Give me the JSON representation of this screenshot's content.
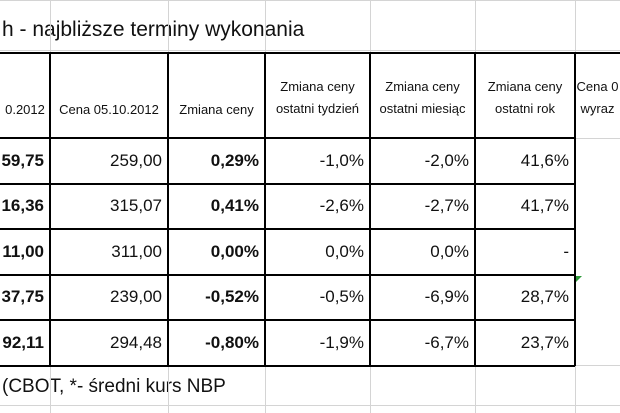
{
  "title": "h - najbliższe terminy wykonania",
  "table": {
    "header": [
      [
        "0.2012"
      ],
      [
        "Cena 05.10.2012"
      ],
      [
        "Zmiana ceny"
      ],
      [
        "Zmiana ceny",
        "ostatni tydzień"
      ],
      [
        "Zmiana ceny",
        "ostatni miesiąc"
      ],
      [
        "Zmiana ceny",
        "ostatni rok"
      ],
      [
        "Cena 0",
        "wyraz"
      ]
    ],
    "rows": [
      [
        "59,75",
        "259,00",
        "0,29%",
        "-1,0%",
        "-2,0%",
        "41,6%"
      ],
      [
        "16,36",
        "315,07",
        "0,41%",
        "-2,6%",
        "-2,7%",
        "41,7%"
      ],
      [
        "11,00",
        "311,00",
        "0,00%",
        "0,0%",
        "0,0%",
        "-"
      ],
      [
        "37,75",
        "239,00",
        "-0,52%",
        "-0,5%",
        "-6,9%",
        "28,7%"
      ],
      [
        "92,11",
        "294,48",
        "-0,80%",
        "-1,9%",
        "-6,7%",
        "23,7%"
      ]
    ]
  },
  "footer": "(CBOT, *- średni kurs NBP"
}
